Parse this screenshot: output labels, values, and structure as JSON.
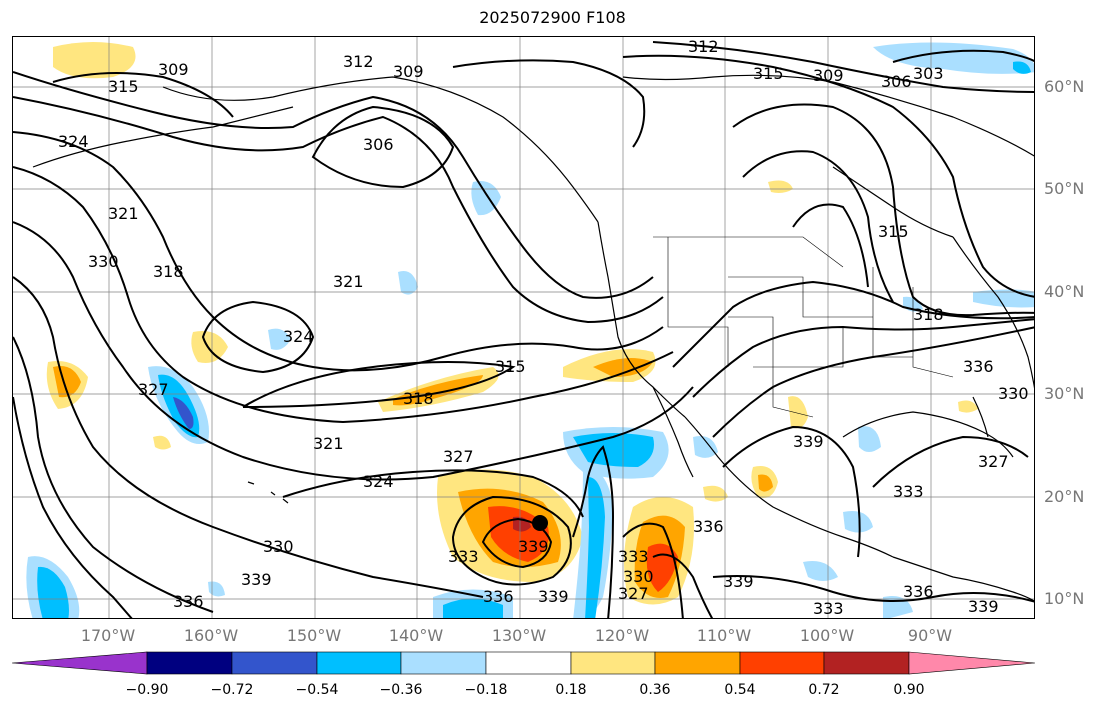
{
  "title": "2025072900 F108",
  "lat_labels": [
    "60°N",
    "50°N",
    "40°N",
    "30°N",
    "20°N",
    "10°N"
  ],
  "lon_labels": [
    "170°W",
    "160°W",
    "150°W",
    "140°W",
    "130°W",
    "120°W",
    "110°W",
    "100°W",
    "90°W"
  ],
  "colorbar": {
    "ticks": [
      "−0.90",
      "−0.72",
      "−0.54",
      "−0.36",
      "−0.18",
      "0.18",
      "0.36",
      "0.54",
      "0.72",
      "0.90"
    ],
    "colors": [
      "#9933cc",
      "#000080",
      "#3355cc",
      "#00bfff",
      "#aadfff",
      "#ffffff",
      "#ffe680",
      "#ffa500",
      "#ff4000",
      "#b22222",
      "#ff88aa"
    ]
  },
  "contour_labels": [
    "306",
    "309",
    "312",
    "315",
    "318",
    "321",
    "324",
    "327",
    "330",
    "333",
    "336",
    "339",
    "303"
  ],
  "colors": {
    "contour": "#000000",
    "grid": "#808080",
    "coast": "#000000"
  },
  "marker": "storm-center"
}
